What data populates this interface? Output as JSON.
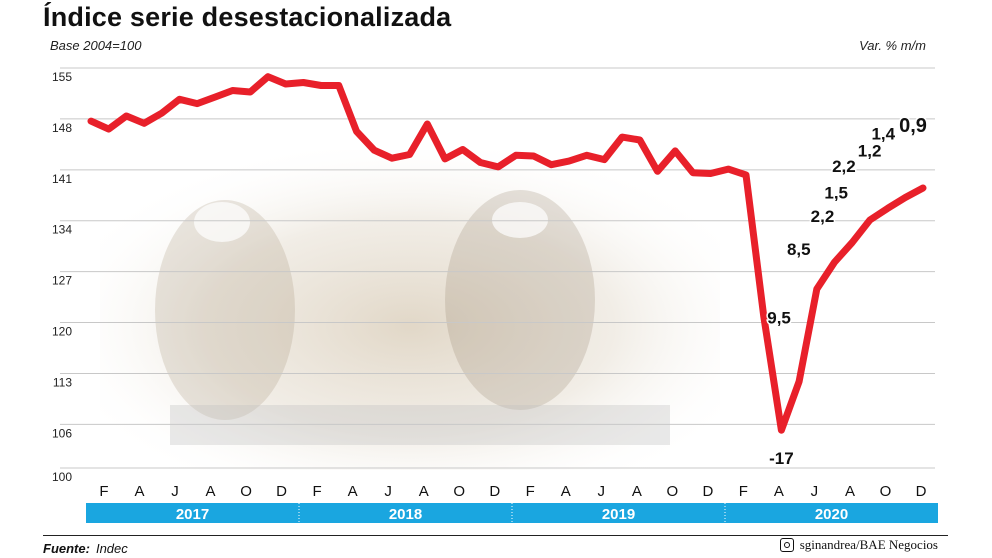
{
  "header": {
    "title": "Índice serie desestacionalizada",
    "base_label": "Base 2004=100",
    "unit_label": "Var. % m/m"
  },
  "footer": {
    "source_label": "Fuente:",
    "source_value": "Indec",
    "credit": "sginandrea/BAE Negocios"
  },
  "colors": {
    "line": "#e8202a",
    "year_band": "#1aa6e0",
    "grid": "#c8c8c8"
  },
  "chart_data": {
    "type": "line",
    "title": "Índice serie desestacionalizada",
    "ylim": [
      100,
      155
    ],
    "yticks": [
      100,
      106,
      113,
      120,
      127,
      134,
      141,
      148,
      155
    ],
    "grid": "horizontal",
    "month_ticks": [
      "F",
      "A",
      "J",
      "A",
      "O",
      "D",
      "F",
      "A",
      "J",
      "A",
      "O",
      "D",
      "F",
      "A",
      "J",
      "A",
      "O",
      "D",
      "F",
      "A",
      "J",
      "A",
      "O",
      "D"
    ],
    "year_labels": [
      "2017",
      "2018",
      "2019",
      "2020"
    ],
    "x": [
      "2017-01",
      "2017-02",
      "2017-03",
      "2017-04",
      "2017-05",
      "2017-06",
      "2017-07",
      "2017-08",
      "2017-09",
      "2017-10",
      "2017-11",
      "2017-12",
      "2018-01",
      "2018-02",
      "2018-03",
      "2018-04",
      "2018-05",
      "2018-06",
      "2018-07",
      "2018-08",
      "2018-09",
      "2018-10",
      "2018-11",
      "2018-12",
      "2019-01",
      "2019-02",
      "2019-03",
      "2019-04",
      "2019-05",
      "2019-06",
      "2019-07",
      "2019-08",
      "2019-09",
      "2019-10",
      "2019-11",
      "2019-12",
      "2020-01",
      "2020-02",
      "2020-03",
      "2020-04",
      "2020-05",
      "2020-06",
      "2020-07",
      "2020-08",
      "2020-09",
      "2020-10",
      "2020-11",
      "2020-12"
    ],
    "values": [
      147.7,
      146.6,
      148.4,
      147.4,
      148.8,
      150.7,
      150.1,
      151.0,
      151.9,
      151.7,
      153.8,
      152.8,
      153.0,
      152.6,
      152.6,
      146.3,
      143.7,
      142.6,
      143.1,
      147.3,
      142.5,
      143.8,
      142.0,
      141.4,
      143.0,
      142.9,
      141.7,
      142.2,
      143.0,
      142.4,
      145.5,
      145.1,
      140.8,
      143.6,
      140.6,
      140.5,
      141.1,
      140.3,
      120.9,
      105.2,
      111.9,
      124.6,
      128.3,
      131.0,
      134.1,
      135.7,
      137.2,
      138.5
    ],
    "annotations": [
      "-17",
      "9,5",
      "8,5",
      "2,2",
      "1,5",
      "2,2",
      "1,2",
      "1,4",
      "0,9"
    ]
  }
}
